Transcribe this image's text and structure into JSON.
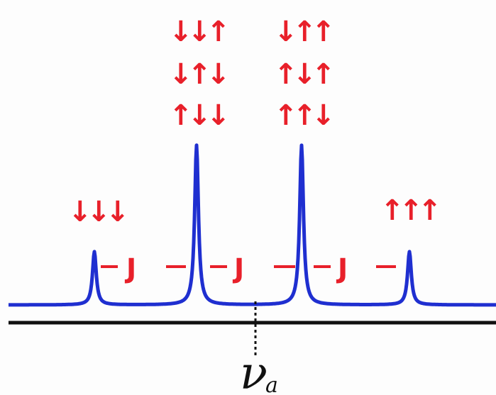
{
  "colors": {
    "spectrum": "#1f2fd0",
    "annotation": "#e8202a",
    "axis": "#111111"
  },
  "multiplet": {
    "peaks": [
      {
        "intensity": 1,
        "spin_states": [
          "↓↓↓"
        ]
      },
      {
        "intensity": 3,
        "spin_states": [
          "↓↓↑",
          "↓↑↓",
          "↑↓↓"
        ]
      },
      {
        "intensity": 3,
        "spin_states": [
          "↓↑↑",
          "↑↓↑",
          "↑↑↓"
        ]
      },
      {
        "intensity": 1,
        "spin_states": [
          "↑↑↑"
        ]
      }
    ],
    "coupling_label": "J",
    "center_label": "ν",
    "center_subscript": "a"
  }
}
